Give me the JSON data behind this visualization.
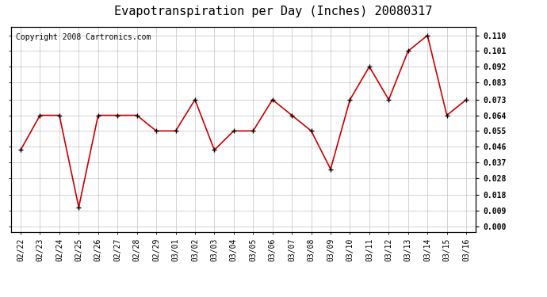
{
  "title": "Evapotranspiration per Day (Inches) 20080317",
  "copyright": "Copyright 2008 Cartronics.com",
  "x_labels": [
    "02/22",
    "02/23",
    "02/24",
    "02/25",
    "02/26",
    "02/27",
    "02/28",
    "02/29",
    "03/01",
    "03/02",
    "03/03",
    "03/04",
    "03/05",
    "03/06",
    "03/07",
    "03/08",
    "03/09",
    "03/10",
    "03/11",
    "03/12",
    "03/13",
    "03/14",
    "03/15",
    "03/16"
  ],
  "y_values": [
    0.044,
    0.064,
    0.064,
    0.011,
    0.064,
    0.064,
    0.064,
    0.055,
    0.055,
    0.073,
    0.044,
    0.055,
    0.055,
    0.073,
    0.064,
    0.055,
    0.033,
    0.073,
    0.092,
    0.073,
    0.101,
    0.11,
    0.064,
    0.073
  ],
  "y_ticks": [
    0.0,
    0.009,
    0.018,
    0.028,
    0.037,
    0.046,
    0.055,
    0.064,
    0.073,
    0.083,
    0.092,
    0.101,
    0.11
  ],
  "y_tick_labels": [
    "0.000",
    "0.009",
    "0.018",
    "0.028",
    "0.037",
    "0.046",
    "0.055",
    "0.064",
    "0.073",
    "0.083",
    "0.092",
    "0.101",
    "0.110"
  ],
  "line_color": "#cc0000",
  "marker": "+",
  "marker_color": "#000000",
  "marker_size": 5,
  "background_color": "#ffffff",
  "grid_color": "#cccccc",
  "title_fontsize": 11,
  "copyright_fontsize": 7,
  "tick_fontsize": 7,
  "ylim": [
    -0.003,
    0.115
  ]
}
